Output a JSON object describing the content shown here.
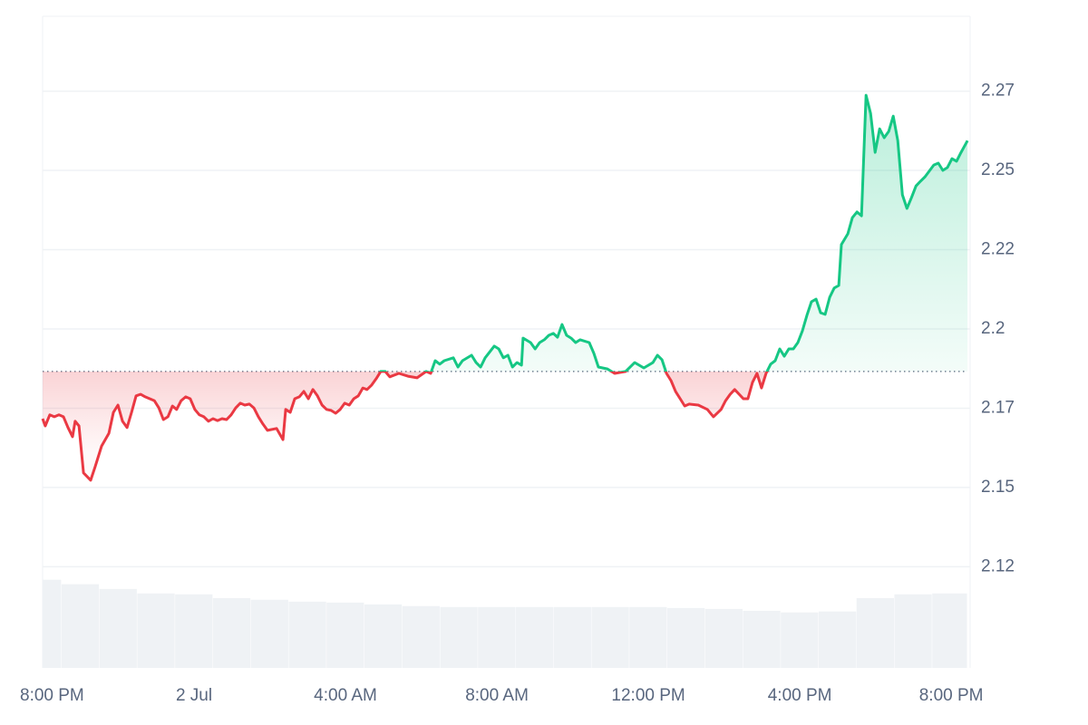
{
  "chart_data": {
    "type": "line",
    "colors": {
      "up": "#16c784",
      "down": "#ea3943",
      "volume": "#eff2f5"
    },
    "baseline": 2.1866,
    "grid": true,
    "xlim": [
      -4,
      20.5
    ],
    "ylim": [
      2.0931,
      2.2986
    ],
    "yticks": [
      {
        "value": 2.125,
        "label": "2.12"
      },
      2.15,
      {
        "value": 2.175,
        "label": "2.17"
      },
      2.2,
      {
        "value": 2.225,
        "label": "2.22"
      },
      2.25,
      {
        "value": 2.275,
        "label": "2.27"
      }
    ],
    "xticks": [
      {
        "value": -4,
        "label": "8:00 PM"
      },
      {
        "value": 0,
        "label": "2 Jul"
      },
      {
        "value": 4,
        "label": "4:00 AM"
      },
      {
        "value": 8,
        "label": "8:00 AM"
      },
      {
        "value": 12,
        "label": "12:00 PM"
      },
      {
        "value": 16,
        "label": "4:00 PM"
      },
      {
        "value": 20,
        "label": "8:00 PM"
      }
    ],
    "x": [
      -4.0,
      -3.93,
      -3.81,
      -3.69,
      -3.57,
      -3.45,
      -3.33,
      -3.21,
      -3.14,
      -3.04,
      -2.92,
      -2.73,
      -2.61,
      -2.44,
      -2.25,
      -2.13,
      -2.01,
      -1.89,
      -1.77,
      -1.65,
      -1.53,
      -1.41,
      -1.29,
      -1.05,
      -0.93,
      -0.81,
      -0.69,
      -0.57,
      -0.46,
      -0.34,
      -0.22,
      -0.1,
      0.02,
      0.14,
      0.26,
      0.38,
      0.5,
      0.62,
      0.74,
      0.86,
      0.98,
      1.1,
      1.22,
      1.34,
      1.46,
      1.58,
      1.7,
      1.82,
      1.94,
      2.18,
      2.35,
      2.42,
      2.54,
      2.66,
      2.78,
      2.9,
      3.02,
      3.14,
      3.26,
      3.38,
      3.5,
      3.62,
      3.74,
      3.86,
      3.98,
      4.1,
      4.22,
      4.34,
      4.46,
      4.57,
      4.69,
      4.81,
      4.93,
      5.05,
      5.17,
      5.41,
      5.65,
      5.89,
      6.13,
      6.25,
      6.37,
      6.49,
      6.61,
      6.85,
      6.97,
      7.09,
      7.33,
      7.45,
      7.57,
      7.69,
      7.93,
      8.05,
      8.17,
      8.29,
      8.41,
      8.53,
      8.65,
      8.69,
      8.89,
      9.01,
      9.13,
      9.25,
      9.37,
      9.49,
      9.6,
      9.72,
      9.84,
      9.96,
      10.08,
      10.2,
      10.44,
      10.56,
      10.68,
      10.92,
      11.11,
      11.4,
      11.64,
      11.88,
      12.12,
      12.24,
      12.36,
      12.48,
      12.6,
      12.72,
      12.84,
      12.96,
      13.08,
      13.32,
      13.56,
      13.72,
      13.92,
      14.04,
      14.16,
      14.28,
      14.4,
      14.51,
      14.63,
      14.75,
      14.87,
      14.99,
      15.11,
      15.23,
      15.35,
      15.47,
      15.59,
      15.71,
      15.83,
      15.95,
      16.07,
      16.19,
      16.31,
      16.43,
      16.55,
      16.67,
      16.79,
      16.91,
      17.03,
      17.1,
      17.27,
      17.39,
      17.51,
      17.63,
      17.75,
      17.87,
      17.99,
      18.11,
      18.23,
      18.35,
      18.47,
      18.59,
      18.71,
      18.83,
      18.95,
      19.07,
      19.19,
      19.31,
      19.54,
      19.66,
      19.78,
      19.9,
      20.02,
      20.14,
      20.26,
      20.43
    ],
    "values": [
      2.1717,
      2.1694,
      2.1729,
      2.1723,
      2.1729,
      2.1723,
      2.1689,
      2.166,
      2.1709,
      2.1694,
      2.1546,
      2.1523,
      2.1566,
      2.1631,
      2.1671,
      2.1737,
      2.176,
      2.1709,
      2.1689,
      2.1737,
      2.1789,
      2.1794,
      2.1786,
      2.1774,
      2.1751,
      2.1714,
      2.1723,
      2.1757,
      2.1746,
      2.1774,
      2.1786,
      2.178,
      2.1746,
      2.1729,
      2.1723,
      2.1709,
      2.1717,
      2.1711,
      2.1717,
      2.1714,
      2.1729,
      2.1751,
      2.1766,
      2.176,
      2.1763,
      2.1751,
      2.1723,
      2.17,
      2.168,
      2.1686,
      2.1651,
      2.1746,
      2.1737,
      2.178,
      2.1786,
      2.1803,
      2.178,
      2.1809,
      2.1789,
      2.176,
      2.1746,
      2.1743,
      2.1734,
      2.1746,
      2.1766,
      2.176,
      2.178,
      2.1789,
      2.1814,
      2.1809,
      2.1823,
      2.1843,
      2.1866,
      2.1866,
      2.1849,
      2.186,
      2.1851,
      2.1846,
      2.1866,
      2.186,
      2.19,
      2.1889,
      2.19,
      2.1909,
      2.188,
      2.19,
      2.1917,
      2.1894,
      2.188,
      2.1909,
      2.1946,
      2.1937,
      2.1909,
      2.1917,
      2.188,
      2.1894,
      2.1886,
      2.1971,
      2.1957,
      2.1937,
      2.1957,
      2.1966,
      2.198,
      2.1986,
      2.1974,
      2.2014,
      2.198,
      2.1971,
      2.1957,
      2.1966,
      2.1957,
      2.1923,
      2.188,
      2.1874,
      2.186,
      2.1866,
      2.1894,
      2.1877,
      2.1894,
      2.1917,
      2.1903,
      2.186,
      2.1837,
      2.1803,
      2.178,
      2.1757,
      2.1763,
      2.176,
      2.1746,
      2.1723,
      2.1746,
      2.1774,
      2.1794,
      2.1809,
      2.1794,
      2.178,
      2.178,
      2.1831,
      2.186,
      2.1814,
      2.186,
      2.1889,
      2.19,
      2.1937,
      2.1914,
      2.1937,
      2.1937,
      2.1957,
      2.1994,
      2.2043,
      2.2086,
      2.2094,
      2.2051,
      2.2046,
      2.21,
      2.2129,
      2.2137,
      2.2266,
      2.23,
      2.2351,
      2.2369,
      2.2357,
      2.2737,
      2.268,
      2.2557,
      2.2631,
      2.2603,
      2.2623,
      2.2671,
      2.2594,
      2.2423,
      2.238,
      2.2414,
      2.2451,
      2.2466,
      2.248,
      2.2517,
      2.2523,
      2.25,
      2.2509,
      2.2537,
      2.2529,
      2.2557,
      2.2594
    ],
    "volume": {
      "x": [
        -4,
        -3,
        -2,
        -1,
        0,
        1,
        2,
        3,
        4,
        5,
        6,
        7,
        8,
        9,
        10,
        11,
        12,
        13,
        14,
        15,
        16,
        17,
        18,
        19,
        20
      ],
      "values": [
        2.1209,
        2.1195,
        2.118,
        2.1166,
        2.1163,
        2.1151,
        2.1146,
        2.114,
        2.1137,
        2.1131,
        2.1126,
        2.1123,
        2.1123,
        2.1123,
        2.1123,
        2.1123,
        2.1123,
        2.112,
        2.1117,
        2.1111,
        2.1106,
        2.1109,
        2.1151,
        2.1163,
        2.1166
      ]
    }
  }
}
